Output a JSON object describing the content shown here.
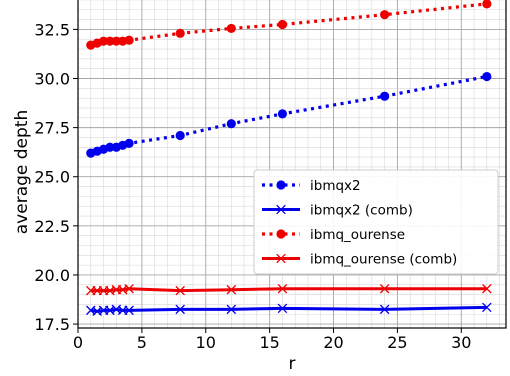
{
  "chart_data": {
    "type": "line",
    "xlabel": "r",
    "ylabel": "average depth",
    "xlim": [
      0,
      33.5
    ],
    "ylim": [
      17.3,
      34.2
    ],
    "xticks": [
      0,
      5,
      10,
      15,
      20,
      25,
      30
    ],
    "yticks": [
      17.5,
      20.0,
      22.5,
      25.0,
      27.5,
      30.0,
      32.5
    ],
    "ytick_labels": [
      "17.5",
      "20.0",
      "22.5",
      "25.0",
      "27.5",
      "30.0",
      "32.5"
    ],
    "grid": "major and minor",
    "legend_position": "lower-right",
    "series": [
      {
        "name": "ibmqx2",
        "color": "#0000ee",
        "style": "dotted",
        "marker": "circle",
        "x": [
          1,
          1.5,
          2,
          2.5,
          3,
          3.5,
          4,
          8,
          12,
          16,
          24,
          32
        ],
        "y": [
          26.2,
          26.3,
          26.4,
          26.5,
          26.5,
          26.6,
          26.7,
          27.1,
          27.7,
          28.2,
          29.1,
          30.1
        ]
      },
      {
        "name": "ibmqx2 (comb)",
        "color": "#0000ee",
        "style": "solid",
        "marker": "x",
        "x": [
          1,
          1.5,
          2,
          2.5,
          3,
          3.5,
          4,
          8,
          12,
          16,
          24,
          32
        ],
        "y": [
          18.2,
          18.15,
          18.2,
          18.2,
          18.25,
          18.2,
          18.2,
          18.25,
          18.25,
          18.3,
          18.25,
          18.35
        ]
      },
      {
        "name": "ibmq_ourense",
        "color": "#ee0000",
        "style": "dotted",
        "marker": "circle",
        "x": [
          1,
          1.5,
          2,
          2.5,
          3,
          3.5,
          4,
          8,
          12,
          16,
          24,
          32
        ],
        "y": [
          31.7,
          31.8,
          31.9,
          31.9,
          31.9,
          31.9,
          31.95,
          32.3,
          32.55,
          32.75,
          33.25,
          33.8
        ]
      },
      {
        "name": "ibmq_ourense (comb)",
        "color": "#ee0000",
        "style": "solid",
        "marker": "x",
        "x": [
          1,
          1.5,
          2,
          2.5,
          3,
          3.5,
          4,
          8,
          12,
          16,
          24,
          32
        ],
        "y": [
          19.2,
          19.2,
          19.2,
          19.2,
          19.25,
          19.25,
          19.3,
          19.2,
          19.25,
          19.3,
          19.3,
          19.3
        ]
      }
    ]
  }
}
